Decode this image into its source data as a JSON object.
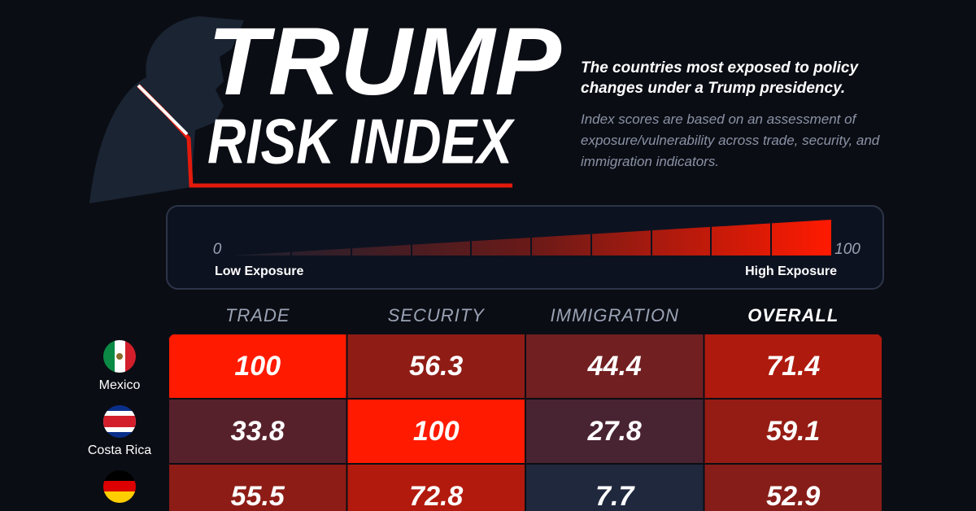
{
  "header": {
    "title_line1": "TRUMP",
    "title_line2": "RISK INDEX",
    "subtitle": "The countries most exposed to policy changes under a Trump presidency.",
    "description": "Index scores are based on an assessment of exposure/vulnerability across trade, security, and immigration indicators."
  },
  "legend": {
    "min": "0",
    "max": "100",
    "low_label": "Low Exposure",
    "high_label": "High Exposure"
  },
  "table": {
    "columns": [
      "TRADE",
      "SECURITY",
      "IMMIGRATION",
      "OVERALL"
    ],
    "rows": [
      {
        "country": "Mexico",
        "values": [
          100,
          56.3,
          44.4,
          71.4
        ]
      },
      {
        "country": "Costa Rica",
        "values": [
          33.8,
          100,
          27.8,
          59.1
        ]
      },
      {
        "values": [
          55.5,
          72.8,
          7.7,
          52.9
        ]
      }
    ]
  }
}
